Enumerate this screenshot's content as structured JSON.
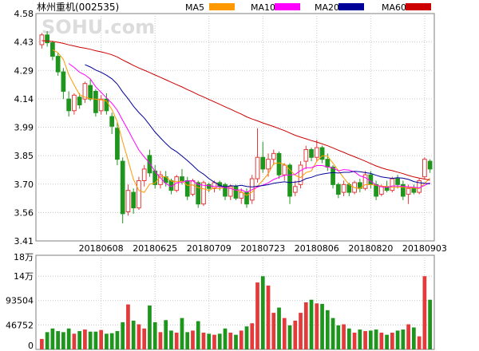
{
  "title": "林州重机(002535)",
  "watermark": "SOHU.com",
  "legend": [
    {
      "name": "MA5",
      "color": "#FF9900"
    },
    {
      "name": "MA10",
      "color": "#FF00FF"
    },
    {
      "name": "MA20",
      "color": "#000099"
    },
    {
      "name": "MA60",
      "color": "#CC0000"
    }
  ],
  "colors": {
    "up": "#E33B3B",
    "down": "#1E961E",
    "grid": "#C8C8C8",
    "frame": "#7F7F7F"
  },
  "chart_data": [
    {
      "type": "candlestick",
      "ylim": [
        3.41,
        4.58
      ],
      "yticks": [
        "4.58",
        "4.43",
        "4.29",
        "4.14",
        "3.99",
        "3.85",
        "3.70",
        "3.56",
        "3.41"
      ],
      "xticks": [
        "20180608",
        "20180625",
        "20180709",
        "20180723",
        "20180806",
        "20180820",
        "20180903"
      ],
      "xtick_positions": [
        11,
        21,
        31,
        41,
        51,
        61,
        71
      ],
      "candles": [
        [
          4.42,
          4.48,
          4.4,
          4.47
        ],
        [
          4.47,
          4.49,
          4.41,
          4.43
        ],
        [
          4.43,
          4.44,
          4.34,
          4.36
        ],
        [
          4.36,
          4.38,
          4.26,
          4.28
        ],
        [
          4.28,
          4.3,
          4.14,
          4.18
        ],
        [
          4.14,
          4.18,
          4.05,
          4.08
        ],
        [
          4.08,
          4.17,
          4.06,
          4.16
        ],
        [
          4.15,
          4.17,
          4.09,
          4.11
        ],
        [
          4.14,
          4.23,
          4.12,
          4.22
        ],
        [
          4.21,
          4.24,
          4.13,
          4.14
        ],
        [
          4.18,
          4.19,
          4.05,
          4.07
        ],
        [
          4.08,
          4.16,
          4.06,
          4.14
        ],
        [
          4.14,
          4.17,
          4.06,
          4.08
        ],
        [
          4.05,
          4.07,
          3.96,
          4.0
        ],
        [
          3.99,
          4.02,
          3.8,
          3.83
        ],
        [
          3.82,
          3.84,
          3.5,
          3.55
        ],
        [
          3.56,
          3.7,
          3.54,
          3.67
        ],
        [
          3.66,
          3.68,
          3.55,
          3.58
        ],
        [
          3.58,
          3.74,
          3.57,
          3.72
        ],
        [
          3.72,
          3.8,
          3.69,
          3.78
        ],
        [
          3.85,
          3.88,
          3.74,
          3.76
        ],
        [
          3.77,
          3.8,
          3.68,
          3.7
        ],
        [
          3.7,
          3.77,
          3.68,
          3.75
        ],
        [
          3.74,
          3.77,
          3.69,
          3.71
        ],
        [
          3.72,
          3.73,
          3.65,
          3.67
        ],
        [
          3.67,
          3.75,
          3.66,
          3.74
        ],
        [
          3.74,
          3.78,
          3.7,
          3.72
        ],
        [
          3.72,
          3.74,
          3.62,
          3.64
        ],
        [
          3.65,
          3.73,
          3.64,
          3.72
        ],
        [
          3.71,
          3.72,
          3.58,
          3.6
        ],
        [
          3.6,
          3.72,
          3.59,
          3.71
        ],
        [
          3.7,
          3.71,
          3.66,
          3.68
        ],
        [
          3.68,
          3.72,
          3.66,
          3.71
        ],
        [
          3.71,
          3.72,
          3.67,
          3.69
        ],
        [
          3.7,
          3.71,
          3.62,
          3.64
        ],
        [
          3.64,
          3.7,
          3.62,
          3.69
        ],
        [
          3.69,
          3.7,
          3.62,
          3.63
        ],
        [
          3.63,
          3.68,
          3.6,
          3.66
        ],
        [
          3.66,
          3.68,
          3.58,
          3.6
        ],
        [
          3.62,
          3.75,
          3.6,
          3.73
        ],
        [
          3.73,
          3.99,
          3.71,
          3.84
        ],
        [
          3.84,
          3.92,
          3.76,
          3.78
        ],
        [
          3.78,
          3.86,
          3.74,
          3.83
        ],
        [
          3.83,
          3.88,
          3.8,
          3.86
        ],
        [
          3.86,
          3.87,
          3.73,
          3.75
        ],
        [
          3.75,
          3.81,
          3.72,
          3.8
        ],
        [
          3.8,
          3.81,
          3.6,
          3.64
        ],
        [
          3.66,
          3.72,
          3.64,
          3.69
        ],
        [
          3.7,
          3.82,
          3.68,
          3.8
        ],
        [
          3.82,
          3.9,
          3.78,
          3.88
        ],
        [
          3.88,
          3.89,
          3.82,
          3.84
        ],
        [
          3.84,
          3.93,
          3.82,
          3.89
        ],
        [
          3.89,
          3.9,
          3.81,
          3.83
        ],
        [
          3.83,
          3.86,
          3.77,
          3.79
        ],
        [
          3.79,
          3.8,
          3.68,
          3.7
        ],
        [
          3.7,
          3.71,
          3.63,
          3.65
        ],
        [
          3.66,
          3.72,
          3.64,
          3.7
        ],
        [
          3.7,
          3.71,
          3.64,
          3.66
        ],
        [
          3.66,
          3.72,
          3.65,
          3.71
        ],
        [
          3.71,
          3.73,
          3.66,
          3.68
        ],
        [
          3.68,
          3.77,
          3.67,
          3.75
        ],
        [
          3.75,
          3.77,
          3.68,
          3.7
        ],
        [
          3.7,
          3.72,
          3.62,
          3.64
        ],
        [
          3.65,
          3.7,
          3.64,
          3.69
        ],
        [
          3.69,
          3.72,
          3.66,
          3.67
        ],
        [
          3.67,
          3.74,
          3.66,
          3.73
        ],
        [
          3.73,
          3.75,
          3.68,
          3.7
        ],
        [
          3.7,
          3.72,
          3.62,
          3.64
        ],
        [
          3.65,
          3.7,
          3.6,
          3.68
        ],
        [
          3.68,
          3.7,
          3.65,
          3.66
        ],
        [
          3.66,
          3.73,
          3.65,
          3.72
        ],
        [
          3.74,
          3.84,
          3.73,
          3.83
        ],
        [
          3.82,
          3.83,
          3.76,
          3.78
        ]
      ]
    },
    {
      "type": "bar",
      "ylim": [
        0,
        180000
      ],
      "yticks": [
        {
          "label": "18万",
          "value": 180000
        },
        {
          "label": "14万",
          "value": 140000
        },
        {
          "label": "93504",
          "value": 93504
        },
        {
          "label": "46752",
          "value": 46752
        },
        {
          "label": "0",
          "value": 0
        }
      ],
      "values": [
        20000,
        33000,
        40000,
        35000,
        33000,
        40000,
        30000,
        35000,
        38000,
        34000,
        34000,
        37000,
        30000,
        31000,
        35000,
        52000,
        86000,
        55000,
        48000,
        40000,
        84000,
        52000,
        33000,
        56000,
        36000,
        32000,
        60000,
        33000,
        36000,
        54000,
        32000,
        30000,
        28000,
        30000,
        40000,
        32000,
        28000,
        36000,
        44000,
        50000,
        128000,
        140000,
        122000,
        70000,
        80000,
        60000,
        46000,
        55000,
        70000,
        90000,
        95000,
        88000,
        87000,
        75000,
        60000,
        46000,
        48000,
        40000,
        32000,
        38000,
        35000,
        36000,
        38000,
        32000,
        28000,
        32000,
        36000,
        38000,
        48000,
        42000,
        25000,
        140000,
        95000
      ]
    }
  ]
}
